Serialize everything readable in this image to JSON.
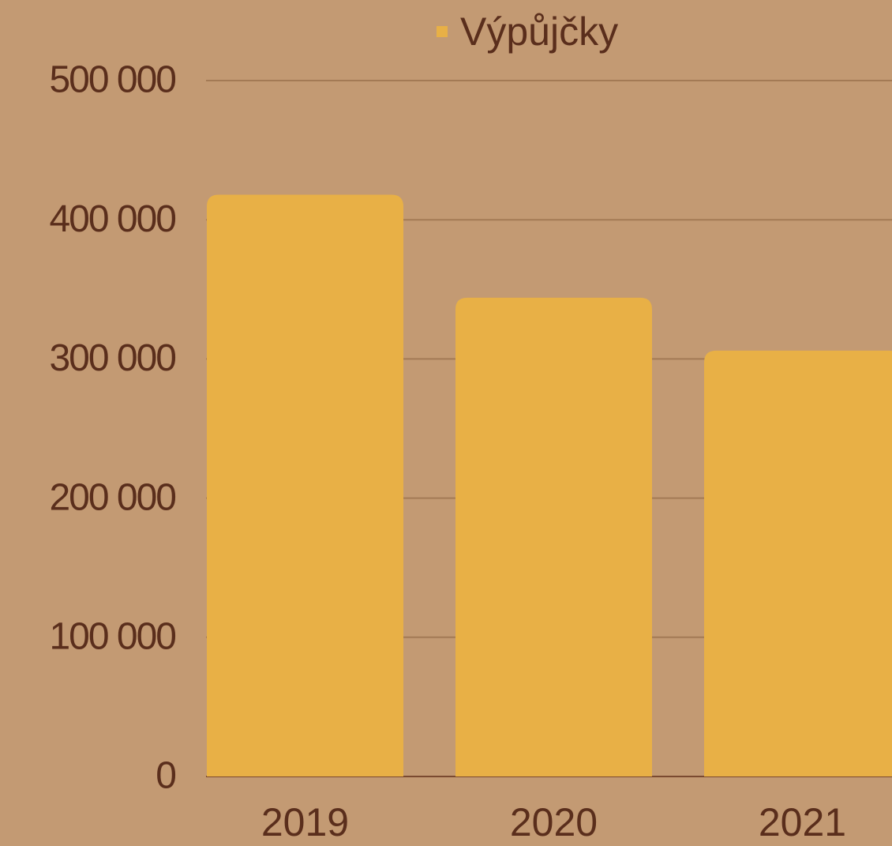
{
  "chart_data": {
    "type": "bar",
    "categories": [
      "2019",
      "2020",
      "2021"
    ],
    "series": [
      {
        "name": "Výpůjčky",
        "color": "#e8b046",
        "values": [
          418000,
          344000,
          306000
        ]
      }
    ],
    "ylim": [
      0,
      500000
    ],
    "yticks": [
      0,
      {
        "value": 100000,
        "label": "100 000"
      },
      {
        "value": 200000,
        "label": "200 000"
      },
      {
        "value": 300000,
        "label": "300 000"
      },
      {
        "value": 400000,
        "label": "400 000"
      },
      {
        "value": 500000,
        "label": "500 000"
      }
    ],
    "grid": true,
    "legend": "top"
  }
}
